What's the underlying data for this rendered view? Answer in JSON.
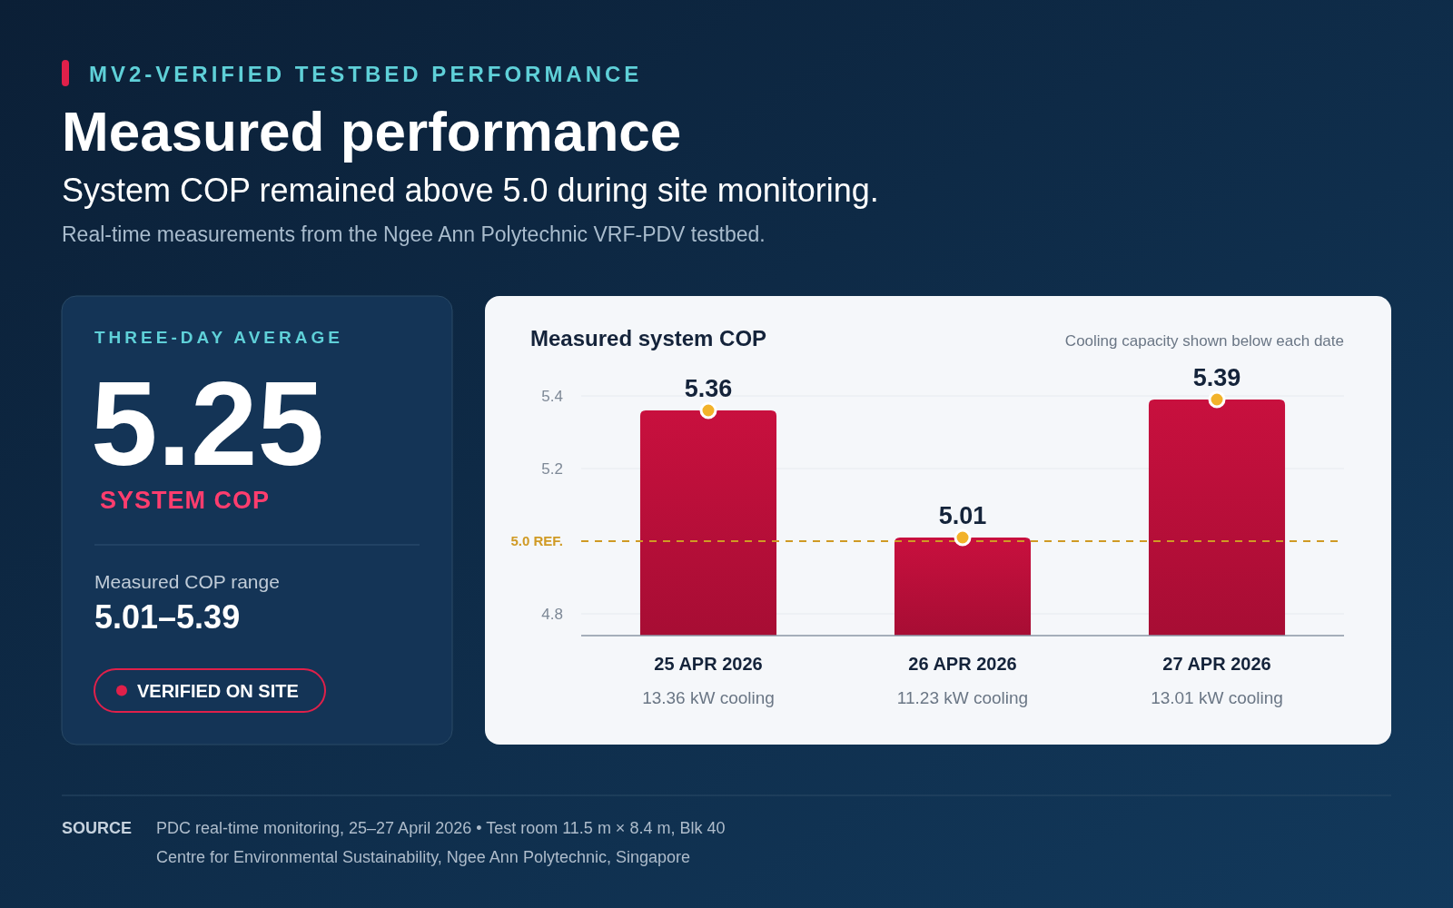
{
  "chart_data": [
    {
      "type": "other",
      "title": "Measured performance",
      "subtitle": "System COP remained above 5.0 during site monitoring.",
      "annotations": [
        "MV2-VERIFIED TESTBED PERFORMANCE",
        "Real-time measurements from the Ngee Ann Polytechnic VRF-PDV testbed.",
        "THREE-DAY AVERAGE",
        "5.25",
        "SYSTEM COP",
        "Measured COP range",
        "5.01–5.39",
        "VERIFIED ON SITE",
        "SOURCE",
        "PDC real-time monitoring, 25–27 April 2026 • Test room 11.5 m × 8.4 m, Blk 40",
        "Centre for Environmental Sustainability, Ngee Ann Polytechnic, Singapore"
      ]
    },
    {
      "type": "bar",
      "title": "Measured system COP",
      "categories": [
        "25 APR 2026",
        "26 APR 2026",
        "27 APR 2026"
      ],
      "series": [
        {
          "type": "bar",
          "color": "#c8103e",
          "values": [
            5.36,
            5.01,
            5.39
          ]
        },
        {
          "type": "scatter",
          "x": [
            "25 APR 2026",
            "26 APR 2026",
            "27 APR 2026"
          ],
          "values": [
            5.36,
            5.01,
            5.39
          ],
          "value_labels": [
            "5.36",
            "5.01",
            "5.39"
          ],
          "color": "#f2b22a",
          "marker": "circle"
        }
      ],
      "ylim": [
        4.74,
        5.4
      ],
      "yticks": [
        4.8,
        5.2,
        5.4
      ],
      "grid": "y",
      "ref_lines": [
        {
          "axis": "y",
          "value": 5.0,
          "label": "5.0 REF.",
          "color": "#d09a24",
          "line_style": "dashed"
        }
      ],
      "annotations": [
        "Cooling capacity shown below each date",
        "13.36 kW cooling",
        "11.23 kW cooling",
        "13.01 kW cooling"
      ]
    }
  ]
}
